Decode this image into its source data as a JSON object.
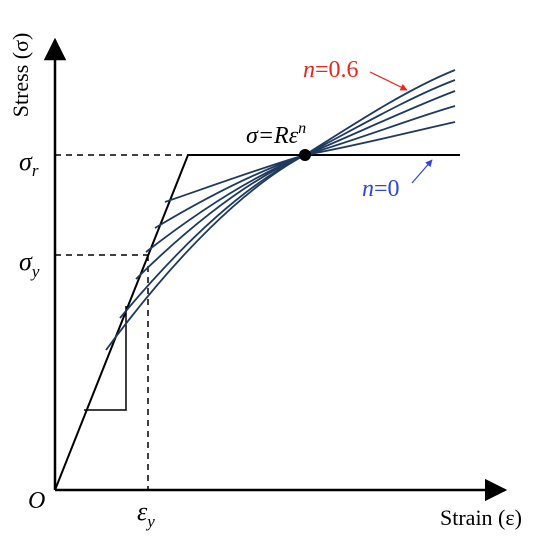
{
  "labels": {
    "y_axis": "Stress (σ)",
    "x_axis": "Strain (ε)",
    "origin": "O",
    "sigma_r_base": "σ",
    "sigma_r_sub": "r",
    "sigma_y_base": "σ",
    "sigma_y_sub": "y",
    "eps_y_base": "ε",
    "eps_y_sub": "y",
    "law_lhs": "σ=Rε",
    "law_exp": "n",
    "n_high_var": "n",
    "n_high_val": "=0.6",
    "n_zero_var": "n",
    "n_zero_val": "=0"
  },
  "colors": {
    "axes": "#000000",
    "curves": "#1f3a5f",
    "n_high": "#e8251f",
    "n_zero": "#3344dd",
    "dashes": "#000000"
  },
  "icons": {
    "intersection_point": "filled-circle-marker",
    "axis_arrows": "arrowhead"
  }
}
